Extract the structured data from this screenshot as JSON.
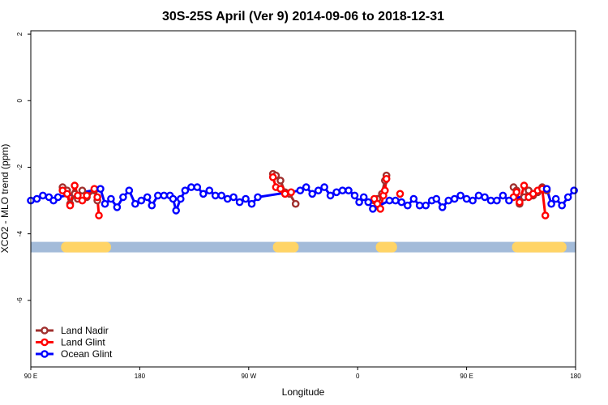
{
  "chart_data": {
    "type": "line",
    "title": "30S-25S April (Ver 9)   2014-09-06 to 2018-12-31",
    "xlabel": "Longitude",
    "ylabel": "XCO2 - MLO trend (ppm)",
    "xlim": [
      -90,
      270
    ],
    "ylim": [
      -8,
      2.1
    ],
    "xticks": [
      {
        "value": -90,
        "label": "90 E"
      },
      {
        "value": -18,
        "label": "180"
      },
      {
        "value": 54,
        "label": "90 W"
      },
      {
        "value": 126,
        "label": "0"
      },
      {
        "value": 198,
        "label": "90 E"
      },
      {
        "value": 270,
        "label": "180"
      }
    ],
    "yticks": [
      {
        "value": 2,
        "label": "2"
      },
      {
        "value": 0,
        "label": "0"
      },
      {
        "value": -2,
        "label": "-2"
      },
      {
        "value": -4,
        "label": "-4"
      },
      {
        "value": -6,
        "label": "-6"
      }
    ],
    "grid": false,
    "legend_position": "bottom-left",
    "surface_band": {
      "y": -4.4,
      "ocean_color": "#a3bbd9",
      "land_color": "#ffd466",
      "land_segments": [
        [
          -70,
          -37
        ],
        [
          70,
          87
        ],
        [
          138,
          152
        ],
        [
          228,
          264
        ]
      ]
    },
    "series": [
      {
        "name": "Land Nadir",
        "color": "#a0302e",
        "segments": [
          [
            [
              -69,
              -2.6
            ],
            [
              -66,
              -2.7
            ],
            [
              -64,
              -3.1
            ],
            [
              -61,
              -2.8
            ],
            [
              -59,
              -2.95
            ],
            [
              -56,
              -2.7
            ],
            [
              -53,
              -2.9
            ],
            [
              -48,
              -2.7
            ],
            [
              -46,
              -3.0
            ]
          ],
          [
            [
              70,
              -2.2
            ],
            [
              72,
              -2.25
            ],
            [
              75,
              -2.4
            ],
            [
              78,
              -2.75
            ],
            [
              81,
              -2.8
            ],
            [
              85,
              -3.1
            ]
          ],
          [
            [
              137,
              -3.0
            ],
            [
              139,
              -2.95
            ],
            [
              142,
              -2.8
            ],
            [
              144,
              -2.4
            ],
            [
              145,
              -2.25
            ]
          ],
          [
            [
              229,
              -2.6
            ],
            [
              231,
              -2.7
            ],
            [
              233,
              -3.1
            ],
            [
              236,
              -2.9
            ],
            [
              239,
              -2.7
            ],
            [
              242,
              -2.85
            ],
            [
              245,
              -2.75
            ],
            [
              248,
              -2.6
            ],
            [
              251,
              -2.7
            ]
          ]
        ]
      },
      {
        "name": "Land Glint",
        "color": "#ff0000",
        "segments": [
          [
            [
              -69,
              -2.7
            ],
            [
              -66,
              -2.8
            ],
            [
              -64,
              -3.15
            ],
            [
              -61,
              -2.55
            ],
            [
              -59,
              -2.85
            ],
            [
              -56,
              -3.0
            ],
            [
              -53,
              -2.85
            ],
            [
              -48,
              -2.65
            ],
            [
              -46,
              -2.9
            ],
            [
              -45,
              -3.45
            ]
          ],
          [
            [
              70,
              -2.3
            ],
            [
              72,
              -2.6
            ],
            [
              75,
              -2.65
            ],
            [
              78,
              -2.8
            ],
            [
              82,
              -2.75
            ]
          ],
          [
            [
              137,
              -2.95
            ],
            [
              139,
              -3.1
            ],
            [
              141,
              -3.25
            ],
            [
              143,
              -2.85
            ],
            [
              144,
              -2.7
            ],
            [
              145,
              -2.35
            ]
          ],
          [
            [
              154,
              -2.8
            ]
          ],
          [
            [
              229,
              -2.9
            ],
            [
              231,
              -2.75
            ],
            [
              233,
              -3.05
            ],
            [
              236,
              -2.55
            ],
            [
              239,
              -2.9
            ],
            [
              242,
              -2.8
            ],
            [
              245,
              -2.7
            ],
            [
              248,
              -2.65
            ],
            [
              250,
              -3.45
            ]
          ]
        ]
      },
      {
        "name": "Ocean Glint",
        "color": "#0000ff",
        "segments": [
          [
            [
              -90,
              -3.0
            ],
            [
              -86,
              -2.95
            ],
            [
              -82,
              -2.85
            ],
            [
              -78,
              -2.9
            ],
            [
              -75,
              -3.0
            ],
            [
              -72,
              -2.9
            ],
            [
              -44,
              -2.65
            ],
            [
              -41,
              -3.1
            ],
            [
              -37,
              -2.95
            ],
            [
              -33,
              -3.2
            ],
            [
              -29,
              -2.9
            ],
            [
              -25,
              -2.7
            ],
            [
              -21,
              -3.1
            ],
            [
              -17,
              -3.0
            ],
            [
              -13,
              -2.9
            ],
            [
              -10,
              -3.15
            ],
            [
              -6,
              -2.85
            ],
            [
              -2,
              -2.85
            ],
            [
              2,
              -2.85
            ],
            [
              4,
              -2.95
            ],
            [
              6,
              -3.3
            ],
            [
              9,
              -2.95
            ],
            [
              12,
              -2.7
            ],
            [
              16,
              -2.6
            ],
            [
              20,
              -2.6
            ],
            [
              24,
              -2.8
            ],
            [
              28,
              -2.7
            ],
            [
              32,
              -2.85
            ],
            [
              36,
              -2.85
            ],
            [
              40,
              -2.95
            ],
            [
              44,
              -2.9
            ],
            [
              48,
              -3.05
            ],
            [
              52,
              -2.95
            ],
            [
              56,
              -3.1
            ],
            [
              60,
              -2.9
            ],
            [
              88,
              -2.7
            ],
            [
              92,
              -2.6
            ],
            [
              96,
              -2.8
            ],
            [
              100,
              -2.7
            ],
            [
              104,
              -2.6
            ],
            [
              108,
              -2.85
            ],
            [
              112,
              -2.75
            ],
            [
              116,
              -2.7
            ],
            [
              120,
              -2.7
            ],
            [
              124,
              -2.85
            ],
            [
              127,
              -3.05
            ],
            [
              130,
              -2.9
            ],
            [
              133,
              -3.05
            ],
            [
              136,
              -3.25
            ],
            [
              147,
              -3.0
            ],
            [
              151,
              -3.0
            ],
            [
              155,
              -3.05
            ],
            [
              159,
              -3.15
            ],
            [
              163,
              -2.95
            ],
            [
              167,
              -3.15
            ],
            [
              171,
              -3.15
            ],
            [
              175,
              -3.0
            ],
            [
              178,
              -2.95
            ],
            [
              182,
              -3.2
            ],
            [
              186,
              -3.0
            ],
            [
              190,
              -2.95
            ],
            [
              194,
              -2.85
            ],
            [
              198,
              -2.95
            ],
            [
              202,
              -3.0
            ],
            [
              206,
              -2.85
            ],
            [
              210,
              -2.9
            ],
            [
              214,
              -3.0
            ],
            [
              218,
              -3.0
            ],
            [
              222,
              -2.85
            ],
            [
              226,
              -3.0
            ],
            [
              251,
              -2.65
            ],
            [
              254,
              -3.1
            ],
            [
              257,
              -2.95
            ],
            [
              261,
              -3.15
            ],
            [
              265,
              -2.9
            ],
            [
              269,
              -2.7
            ]
          ]
        ]
      }
    ]
  }
}
